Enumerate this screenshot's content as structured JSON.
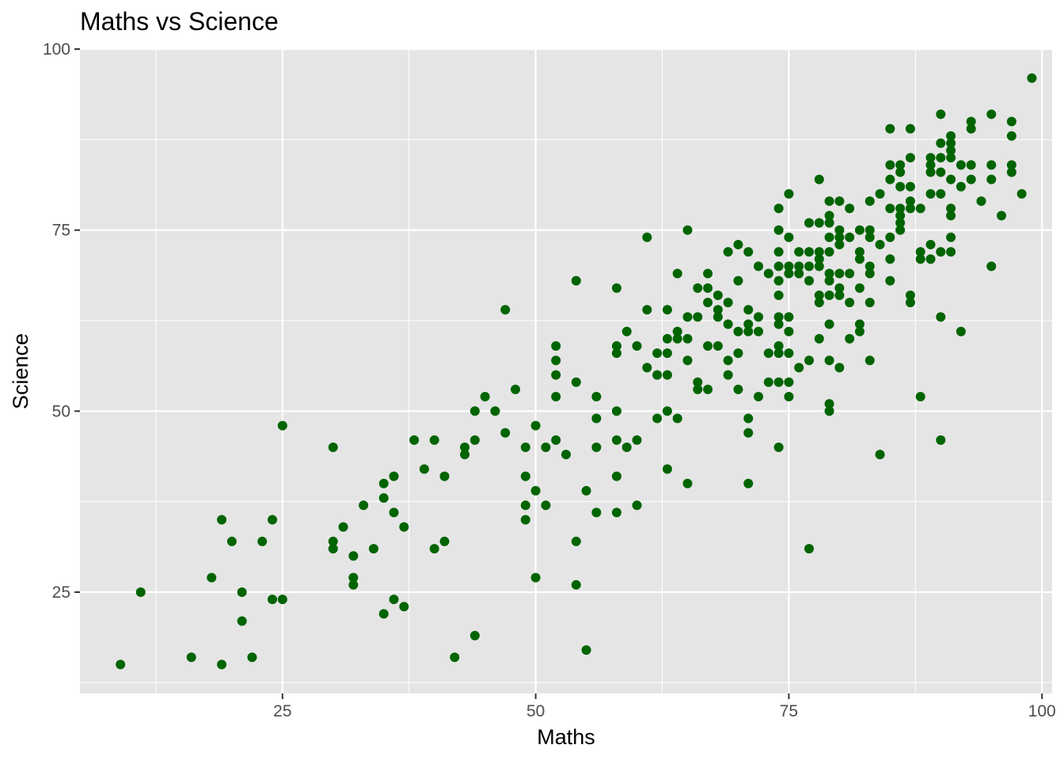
{
  "chart_data": {
    "type": "scatter",
    "title": "Maths vs Science",
    "xlabel": "Maths",
    "ylabel": "Science",
    "xlim": [
      5,
      101
    ],
    "ylim": [
      11,
      100
    ],
    "x_ticks": [
      25,
      50,
      75,
      100
    ],
    "y_ticks": [
      25,
      50,
      75,
      100
    ],
    "x_tick_labels": [
      "25",
      "50",
      "75",
      "100"
    ],
    "y_tick_labels": [
      "25",
      "50",
      "75",
      "100"
    ],
    "grid": true,
    "legend": "none",
    "colors": {
      "panel": "#e5e5e5",
      "grid": "#ffffff",
      "point": "#006400",
      "tick": "#4d4d4d"
    },
    "points": [
      [
        9,
        15
      ],
      [
        11,
        25
      ],
      [
        16,
        16
      ],
      [
        18,
        27
      ],
      [
        19,
        15
      ],
      [
        19,
        35
      ],
      [
        20,
        32
      ],
      [
        21,
        25
      ],
      [
        21,
        21
      ],
      [
        22,
        16
      ],
      [
        23,
        32
      ],
      [
        24,
        24
      ],
      [
        24,
        35
      ],
      [
        25,
        24
      ],
      [
        25,
        48
      ],
      [
        30,
        45
      ],
      [
        30,
        32
      ],
      [
        30,
        31
      ],
      [
        31,
        34
      ],
      [
        32,
        30
      ],
      [
        32,
        27
      ],
      [
        32,
        26
      ],
      [
        33,
        37
      ],
      [
        34,
        31
      ],
      [
        35,
        40
      ],
      [
        35,
        38
      ],
      [
        35,
        22
      ],
      [
        36,
        41
      ],
      [
        36,
        36
      ],
      [
        36,
        24
      ],
      [
        37,
        34
      ],
      [
        37,
        23
      ],
      [
        38,
        46
      ],
      [
        39,
        42
      ],
      [
        40,
        46
      ],
      [
        40,
        31
      ],
      [
        41,
        41
      ],
      [
        41,
        32
      ],
      [
        42,
        16
      ],
      [
        43,
        45
      ],
      [
        43,
        44
      ],
      [
        44,
        50
      ],
      [
        44,
        46
      ],
      [
        44,
        19
      ],
      [
        45,
        52
      ],
      [
        46,
        50
      ],
      [
        47,
        64
      ],
      [
        47,
        47
      ],
      [
        48,
        53
      ],
      [
        49,
        45
      ],
      [
        49,
        41
      ],
      [
        49,
        37
      ],
      [
        49,
        35
      ],
      [
        50,
        48
      ],
      [
        50,
        39
      ],
      [
        50,
        27
      ],
      [
        51,
        45
      ],
      [
        51,
        37
      ],
      [
        52,
        59
      ],
      [
        52,
        57
      ],
      [
        52,
        55
      ],
      [
        52,
        52
      ],
      [
        52,
        46
      ],
      [
        53,
        44
      ],
      [
        54,
        68
      ],
      [
        54,
        54
      ],
      [
        54,
        32
      ],
      [
        54,
        26
      ],
      [
        55,
        39
      ],
      [
        55,
        17
      ],
      [
        56,
        52
      ],
      [
        56,
        49
      ],
      [
        56,
        45
      ],
      [
        56,
        36
      ],
      [
        58,
        67
      ],
      [
        58,
        59
      ],
      [
        58,
        58
      ],
      [
        58,
        50
      ],
      [
        58,
        46
      ],
      [
        58,
        41
      ],
      [
        58,
        36
      ],
      [
        59,
        61
      ],
      [
        59,
        45
      ],
      [
        60,
        59
      ],
      [
        60,
        46
      ],
      [
        60,
        37
      ],
      [
        61,
        74
      ],
      [
        61,
        64
      ],
      [
        61,
        56
      ],
      [
        62,
        58
      ],
      [
        62,
        55
      ],
      [
        62,
        49
      ],
      [
        63,
        64
      ],
      [
        63,
        60
      ],
      [
        63,
        58
      ],
      [
        63,
        55
      ],
      [
        63,
        50
      ],
      [
        63,
        42
      ],
      [
        64,
        69
      ],
      [
        64,
        61
      ],
      [
        64,
        60
      ],
      [
        64,
        49
      ],
      [
        65,
        75
      ],
      [
        65,
        63
      ],
      [
        65,
        60
      ],
      [
        65,
        57
      ],
      [
        65,
        40
      ],
      [
        66,
        67
      ],
      [
        66,
        63
      ],
      [
        66,
        54
      ],
      [
        66,
        53
      ],
      [
        67,
        69
      ],
      [
        67,
        67
      ],
      [
        67,
        65
      ],
      [
        67,
        59
      ],
      [
        67,
        53
      ],
      [
        68,
        66
      ],
      [
        68,
        64
      ],
      [
        68,
        63
      ],
      [
        68,
        59
      ],
      [
        69,
        72
      ],
      [
        69,
        65
      ],
      [
        69,
        62
      ],
      [
        69,
        57
      ],
      [
        69,
        55
      ],
      [
        70,
        73
      ],
      [
        70,
        68
      ],
      [
        70,
        61
      ],
      [
        70,
        58
      ],
      [
        70,
        53
      ],
      [
        71,
        72
      ],
      [
        71,
        64
      ],
      [
        71,
        62
      ],
      [
        71,
        61
      ],
      [
        71,
        49
      ],
      [
        71,
        47
      ],
      [
        71,
        40
      ],
      [
        72,
        70
      ],
      [
        72,
        63
      ],
      [
        72,
        61
      ],
      [
        72,
        52
      ],
      [
        73,
        69
      ],
      [
        73,
        58
      ],
      [
        73,
        54
      ],
      [
        74,
        78
      ],
      [
        74,
        75
      ],
      [
        74,
        72
      ],
      [
        74,
        70
      ],
      [
        74,
        68
      ],
      [
        74,
        66
      ],
      [
        74,
        63
      ],
      [
        74,
        62
      ],
      [
        74,
        59
      ],
      [
        74,
        58
      ],
      [
        74,
        54
      ],
      [
        74,
        45
      ],
      [
        75,
        80
      ],
      [
        75,
        74
      ],
      [
        75,
        70
      ],
      [
        75,
        69
      ],
      [
        75,
        63
      ],
      [
        75,
        61
      ],
      [
        75,
        58
      ],
      [
        75,
        54
      ],
      [
        75,
        52
      ],
      [
        76,
        72
      ],
      [
        76,
        70
      ],
      [
        76,
        69
      ],
      [
        76,
        56
      ],
      [
        77,
        76
      ],
      [
        77,
        72
      ],
      [
        77,
        70
      ],
      [
        77,
        68
      ],
      [
        77,
        57
      ],
      [
        77,
        31
      ],
      [
        78,
        82
      ],
      [
        78,
        76
      ],
      [
        78,
        72
      ],
      [
        78,
        71
      ],
      [
        78,
        70
      ],
      [
        78,
        66
      ],
      [
        78,
        65
      ],
      [
        78,
        60
      ],
      [
        79,
        79
      ],
      [
        79,
        77
      ],
      [
        79,
        76
      ],
      [
        79,
        74
      ],
      [
        79,
        72
      ],
      [
        79,
        69
      ],
      [
        79,
        68
      ],
      [
        79,
        66
      ],
      [
        79,
        62
      ],
      [
        79,
        57
      ],
      [
        79,
        51
      ],
      [
        79,
        50
      ],
      [
        80,
        79
      ],
      [
        80,
        75
      ],
      [
        80,
        74
      ],
      [
        80,
        73
      ],
      [
        80,
        69
      ],
      [
        80,
        67
      ],
      [
        80,
        66
      ],
      [
        80,
        56
      ],
      [
        81,
        78
      ],
      [
        81,
        74
      ],
      [
        81,
        69
      ],
      [
        81,
        65
      ],
      [
        81,
        60
      ],
      [
        82,
        75
      ],
      [
        82,
        72
      ],
      [
        82,
        71
      ],
      [
        82,
        67
      ],
      [
        82,
        62
      ],
      [
        82,
        61
      ],
      [
        83,
        79
      ],
      [
        83,
        75
      ],
      [
        83,
        74
      ],
      [
        83,
        70
      ],
      [
        83,
        69
      ],
      [
        83,
        65
      ],
      [
        83,
        57
      ],
      [
        84,
        80
      ],
      [
        84,
        73
      ],
      [
        84,
        44
      ],
      [
        85,
        89
      ],
      [
        85,
        84
      ],
      [
        85,
        82
      ],
      [
        85,
        78
      ],
      [
        85,
        74
      ],
      [
        85,
        71
      ],
      [
        85,
        68
      ],
      [
        86,
        84
      ],
      [
        86,
        83
      ],
      [
        86,
        81
      ],
      [
        86,
        78
      ],
      [
        86,
        77
      ],
      [
        86,
        76
      ],
      [
        86,
        75
      ],
      [
        87,
        89
      ],
      [
        87,
        85
      ],
      [
        87,
        81
      ],
      [
        87,
        79
      ],
      [
        87,
        78
      ],
      [
        87,
        66
      ],
      [
        87,
        65
      ],
      [
        88,
        78
      ],
      [
        88,
        72
      ],
      [
        88,
        71
      ],
      [
        88,
        52
      ],
      [
        89,
        85
      ],
      [
        89,
        84
      ],
      [
        89,
        83
      ],
      [
        89,
        80
      ],
      [
        89,
        73
      ],
      [
        89,
        71
      ],
      [
        90,
        91
      ],
      [
        90,
        87
      ],
      [
        90,
        85
      ],
      [
        90,
        83
      ],
      [
        90,
        80
      ],
      [
        90,
        72
      ],
      [
        90,
        63
      ],
      [
        90,
        46
      ],
      [
        91,
        88
      ],
      [
        91,
        87
      ],
      [
        91,
        86
      ],
      [
        91,
        85
      ],
      [
        91,
        82
      ],
      [
        91,
        78
      ],
      [
        91,
        77
      ],
      [
        91,
        74
      ],
      [
        91,
        72
      ],
      [
        92,
        84
      ],
      [
        92,
        81
      ],
      [
        92,
        61
      ],
      [
        93,
        90
      ],
      [
        93,
        89
      ],
      [
        93,
        84
      ],
      [
        93,
        82
      ],
      [
        94,
        79
      ],
      [
        95,
        91
      ],
      [
        95,
        84
      ],
      [
        95,
        82
      ],
      [
        95,
        70
      ],
      [
        96,
        77
      ],
      [
        97,
        90
      ],
      [
        97,
        88
      ],
      [
        97,
        84
      ],
      [
        97,
        83
      ],
      [
        98,
        80
      ],
      [
        99,
        96
      ]
    ]
  }
}
